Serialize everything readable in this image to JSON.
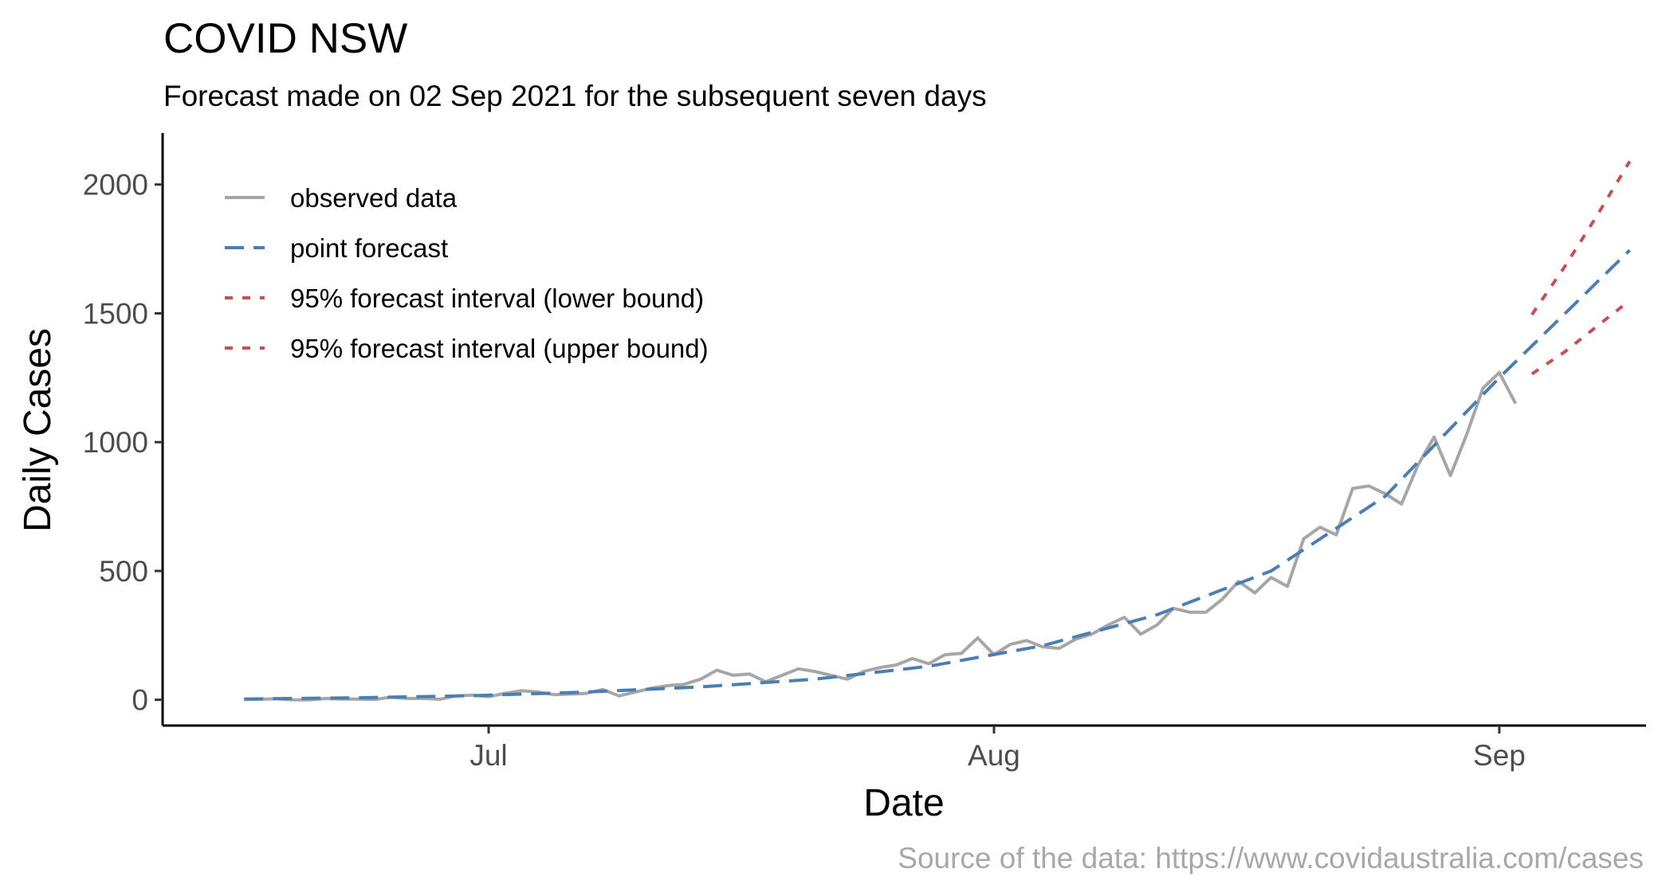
{
  "chart_data": {
    "type": "line",
    "title": "COVID NSW",
    "subtitle": "Forecast made on 02 Sep 2021 for the subsequent seven days",
    "xlabel": "Date",
    "ylabel": "Daily Cases",
    "caption": "Source of the data: https://www.covidaustralia.com/cases",
    "ylim": [
      -100,
      2200
    ],
    "xlim": [
      "2021-06-11",
      "2021-09-10"
    ],
    "y_ticks": [
      0,
      500,
      1000,
      1500,
      2000
    ],
    "y_tick_labels": [
      "0",
      "500",
      "1000",
      "1500",
      "2000"
    ],
    "x_ticks": [
      "2021-07-01",
      "2021-08-01",
      "2021-09-01"
    ],
    "x_tick_labels": [
      "Jul",
      "Aug",
      "Sep"
    ],
    "grid": false,
    "legend_position": "top-left",
    "legend": [
      {
        "label": "observed data",
        "color": "#a6a6a6",
        "style": "solid"
      },
      {
        "label": "point forecast",
        "color": "#4a7fb5",
        "style": "dashed"
      },
      {
        "label": "95% forecast interval (lower bound)",
        "color": "#c94f4f",
        "style": "dotted"
      },
      {
        "label": "95% forecast interval (upper bound)",
        "color": "#c94f4f",
        "style": "dotted"
      }
    ],
    "series": [
      {
        "name": "observed data",
        "color": "#a6a6a6",
        "x": [
          "2021-06-16",
          "2021-06-17",
          "2021-06-18",
          "2021-06-19",
          "2021-06-20",
          "2021-06-21",
          "2021-06-22",
          "2021-06-23",
          "2021-06-24",
          "2021-06-25",
          "2021-06-26",
          "2021-06-27",
          "2021-06-28",
          "2021-06-29",
          "2021-06-30",
          "2021-07-01",
          "2021-07-02",
          "2021-07-03",
          "2021-07-04",
          "2021-07-05",
          "2021-07-06",
          "2021-07-07",
          "2021-07-08",
          "2021-07-09",
          "2021-07-10",
          "2021-07-11",
          "2021-07-12",
          "2021-07-13",
          "2021-07-14",
          "2021-07-15",
          "2021-07-16",
          "2021-07-17",
          "2021-07-18",
          "2021-07-19",
          "2021-07-20",
          "2021-07-21",
          "2021-07-22",
          "2021-07-23",
          "2021-07-24",
          "2021-07-25",
          "2021-07-26",
          "2021-07-27",
          "2021-07-28",
          "2021-07-29",
          "2021-07-30",
          "2021-07-31",
          "2021-08-01",
          "2021-08-02",
          "2021-08-03",
          "2021-08-04",
          "2021-08-05",
          "2021-08-06",
          "2021-08-07",
          "2021-08-08",
          "2021-08-09",
          "2021-08-10",
          "2021-08-11",
          "2021-08-12",
          "2021-08-13",
          "2021-08-14",
          "2021-08-15",
          "2021-08-16",
          "2021-08-17",
          "2021-08-18",
          "2021-08-19",
          "2021-08-20",
          "2021-08-21",
          "2021-08-22",
          "2021-08-23",
          "2021-08-24",
          "2021-08-25",
          "2021-08-26",
          "2021-08-27",
          "2021-08-28",
          "2021-08-29",
          "2021-08-30",
          "2021-08-31",
          "2021-09-01",
          "2021-09-02"
        ],
        "y": [
          1,
          2,
          4,
          0,
          0,
          5,
          3,
          3,
          1,
          10,
          5,
          5,
          2,
          15,
          18,
          12,
          25,
          35,
          30,
          20,
          22,
          25,
          40,
          15,
          30,
          45,
          55,
          60,
          80,
          115,
          95,
          100,
          70,
          95,
          120,
          110,
          95,
          80,
          110,
          125,
          135,
          160,
          140,
          175,
          180,
          240,
          175,
          215,
          230,
          205,
          200,
          235,
          255,
          290,
          320,
          255,
          290,
          355,
          340,
          340,
          390,
          460,
          415,
          475,
          440,
          625,
          670,
          640,
          820,
          830,
          800,
          760,
          910,
          1020,
          870,
          1030,
          1210,
          1270,
          1150
        ]
      },
      {
        "name": "point forecast",
        "color": "#4a7fb5",
        "x": [
          "2021-06-16",
          "2021-06-23",
          "2021-06-30",
          "2021-07-07",
          "2021-07-14",
          "2021-07-21",
          "2021-07-28",
          "2021-08-04",
          "2021-08-11",
          "2021-08-18",
          "2021-08-25",
          "2021-09-01",
          "2021-09-09"
        ],
        "y": [
          3,
          8,
          16,
          30,
          50,
          80,
          130,
          210,
          330,
          500,
          790,
          1250,
          1745
        ]
      },
      {
        "name": "95% forecast interval (lower bound)",
        "color": "#c94f4f",
        "x": [
          "2021-09-03",
          "2021-09-05",
          "2021-09-07",
          "2021-09-09"
        ],
        "y": [
          1265,
          1350,
          1450,
          1550
        ]
      },
      {
        "name": "95% forecast interval (upper bound)",
        "color": "#c94f4f",
        "x": [
          "2021-09-03",
          "2021-09-05",
          "2021-09-07",
          "2021-09-09"
        ],
        "y": [
          1495,
          1680,
          1880,
          2090
        ]
      }
    ]
  }
}
